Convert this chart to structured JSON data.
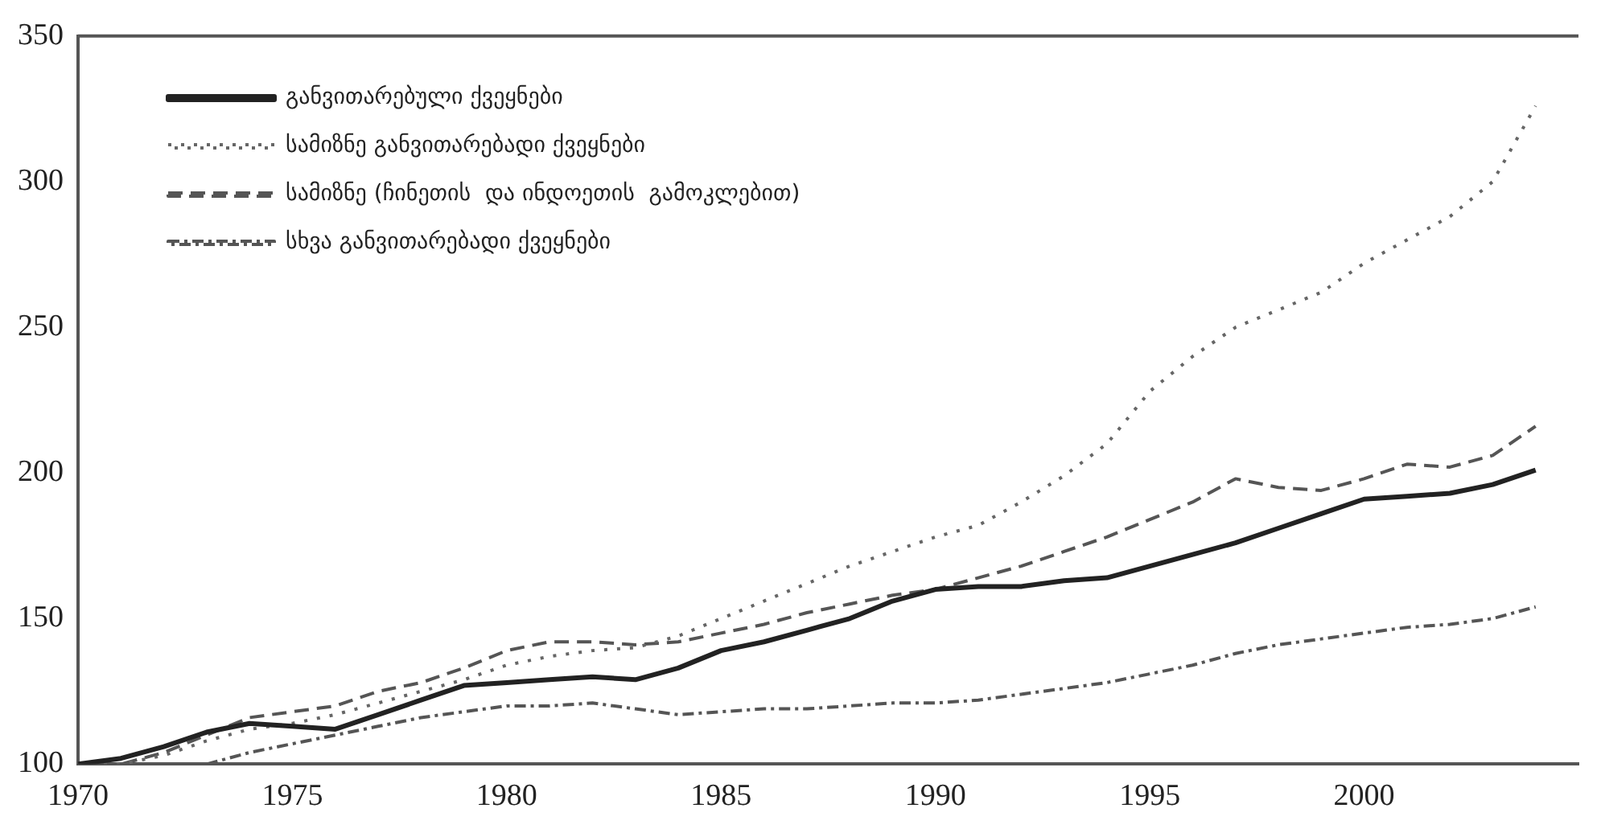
{
  "chart_data": {
    "type": "line",
    "x": [
      1970,
      1971,
      1972,
      1973,
      1974,
      1975,
      1976,
      1977,
      1978,
      1979,
      1980,
      1981,
      1982,
      1983,
      1984,
      1985,
      1986,
      1987,
      1988,
      1989,
      1990,
      1991,
      1992,
      1993,
      1994,
      1995,
      1996,
      1997,
      1998,
      1999,
      2000,
      2001,
      2002,
      2003,
      2004
    ],
    "series": [
      {
        "name": "განვითარებული ქვეყნები",
        "color": "#222222",
        "line_style": "solid",
        "values": [
          100,
          102,
          106,
          111,
          114,
          113,
          112,
          117,
          122,
          127,
          128,
          129,
          130,
          129,
          133,
          139,
          142,
          146,
          150,
          156,
          160,
          161,
          161,
          163,
          164,
          168,
          172,
          176,
          181,
          186,
          191,
          192,
          193,
          196,
          201
        ]
      },
      {
        "name": "სამიზნე განვითარებადი ქვეყნები",
        "color": "#666666",
        "line_style": "dotted",
        "values": [
          100,
          100,
          103,
          108,
          112,
          114,
          117,
          121,
          125,
          129,
          134,
          137,
          139,
          140,
          144,
          150,
          156,
          162,
          168,
          173,
          178,
          182,
          190,
          199,
          210,
          228,
          240,
          250,
          256,
          262,
          272,
          280,
          288,
          300,
          326
        ]
      },
      {
        "name": "სამიზნე (ჩინეთის  და ინდოეთის  გამოკლებით)",
        "color": "#555555",
        "line_style": "dashed",
        "values": [
          100,
          100,
          104,
          110,
          116,
          118,
          120,
          125,
          128,
          133,
          139,
          142,
          142,
          141,
          142,
          145,
          148,
          152,
          155,
          158,
          160,
          164,
          168,
          173,
          178,
          184,
          190,
          198,
          195,
          194,
          198,
          203,
          202,
          206,
          216
        ]
      },
      {
        "name": "სხვა განვითარებადი ქვეყნები",
        "color": "#555555",
        "line_style": "dashdot",
        "values": [
          null,
          null,
          null,
          100,
          104,
          107,
          110,
          113,
          116,
          118,
          120,
          120,
          121,
          119,
          117,
          118,
          119,
          119,
          120,
          121,
          121,
          122,
          124,
          126,
          128,
          131,
          134,
          138,
          141,
          143,
          145,
          147,
          148,
          150,
          154
        ]
      }
    ],
    "xlim": [
      1970,
      2005
    ],
    "xticks": [
      1970,
      1975,
      1980,
      1985,
      1990,
      1995,
      2000
    ],
    "ylim": [
      100,
      350
    ],
    "yticks": [
      100,
      150,
      200,
      250,
      300,
      350
    ],
    "grid": false,
    "legend": "top left",
    "marker": "none"
  }
}
